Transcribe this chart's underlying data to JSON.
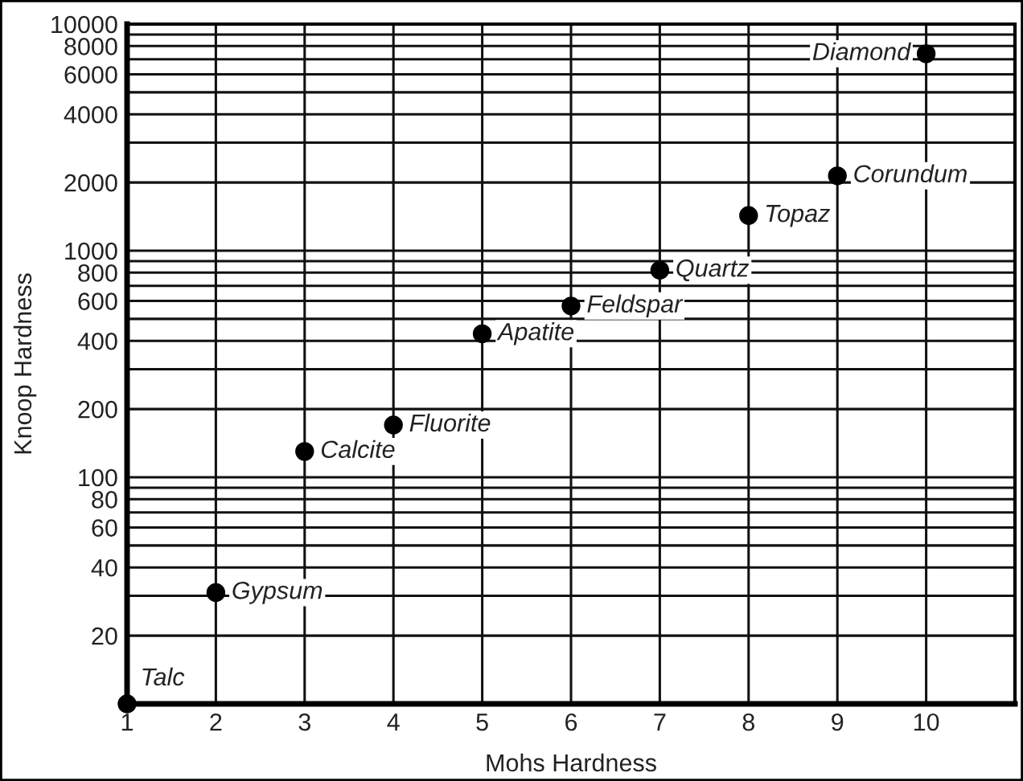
{
  "chart_data": {
    "type": "scatter",
    "xlabel": "Mohs Hardness",
    "ylabel": "Knoop Hardness",
    "x": [
      1,
      2,
      3,
      4,
      5,
      6,
      7,
      8,
      9,
      10
    ],
    "values": [
      10,
      31,
      130,
      170,
      430,
      570,
      820,
      1430,
      2140,
      7400
    ],
    "color": "#000000",
    "marker": "circle",
    "log": "y",
    "grid": true,
    "xlim": [
      1,
      11
    ],
    "xticks": [
      1,
      2,
      3,
      4,
      5,
      6,
      7,
      8,
      9,
      10
    ],
    "ylim": [
      10,
      10000
    ],
    "yticks": [
      {
        "value": 20,
        "label": "20"
      },
      {
        "value": 30,
        "label": null
      },
      {
        "value": 40,
        "label": "40"
      },
      {
        "value": 50,
        "label": null
      },
      {
        "value": 60,
        "label": "60"
      },
      {
        "value": 70,
        "label": null
      },
      {
        "value": 80,
        "label": "80"
      },
      {
        "value": 90,
        "label": null
      },
      {
        "value": 100,
        "label": "100"
      },
      {
        "value": 200,
        "label": "200"
      },
      {
        "value": 300,
        "label": null
      },
      {
        "value": 400,
        "label": "400"
      },
      {
        "value": 500,
        "label": null
      },
      {
        "value": 600,
        "label": "600"
      },
      {
        "value": 700,
        "label": null
      },
      {
        "value": 800,
        "label": "800"
      },
      {
        "value": 900,
        "label": null
      },
      {
        "value": 1000,
        "label": "1000"
      },
      {
        "value": 2000,
        "label": "2000"
      },
      {
        "value": 3000,
        "label": null
      },
      {
        "value": 4000,
        "label": "4000"
      },
      {
        "value": 5000,
        "label": null
      },
      {
        "value": 6000,
        "label": "6000"
      },
      {
        "value": 7000,
        "label": null
      },
      {
        "value": 8000,
        "label": "8000"
      },
      {
        "value": 9000,
        "label": null
      },
      {
        "value": 10000,
        "label": "10000"
      }
    ],
    "annotations": [
      {
        "text": "Talc",
        "x": 1,
        "y": 10
      },
      {
        "text": "Gypsum",
        "x": 2,
        "y": 31
      },
      {
        "text": "Calcite",
        "x": 3,
        "y": 130
      },
      {
        "text": "Fluorite",
        "x": 4,
        "y": 170
      },
      {
        "text": "Apatite",
        "x": 5,
        "y": 430
      },
      {
        "text": "Feldspar",
        "x": 6,
        "y": 570
      },
      {
        "text": "Quartz",
        "x": 7,
        "y": 820
      },
      {
        "text": "Topaz",
        "x": 8,
        "y": 1430
      },
      {
        "text": "Corundum",
        "x": 9,
        "y": 2140
      },
      {
        "text": "Diamond",
        "x": 10,
        "y": 7400
      }
    ]
  }
}
